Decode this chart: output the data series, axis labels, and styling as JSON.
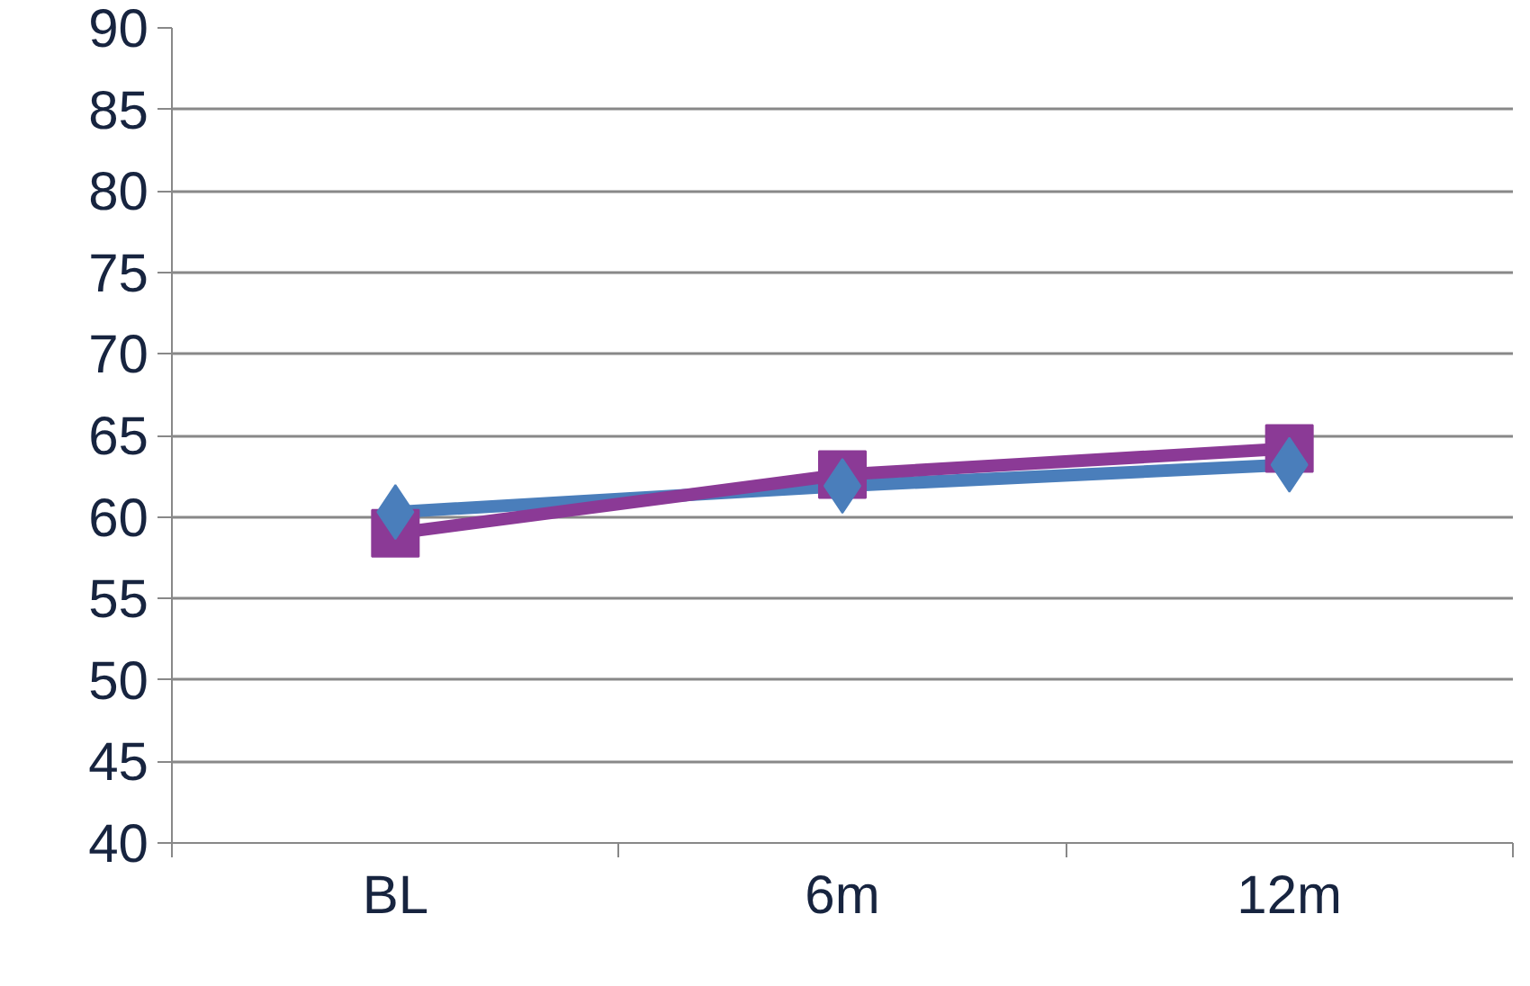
{
  "chart_data": {
    "type": "line",
    "categories": [
      "BL",
      "6m",
      "12m"
    ],
    "series": [
      {
        "color": "#4a7ebb",
        "values": [
          60.3,
          61.9,
          63.2
        ],
        "marker": "diamond"
      },
      {
        "color": "#8b3a96",
        "values": [
          59.0,
          62.6,
          64.2
        ],
        "marker": "square"
      }
    ],
    "ylim": [
      40,
      90
    ],
    "yticks": [
      40,
      45,
      50,
      55,
      60,
      65,
      70,
      75,
      80,
      85,
      90
    ],
    "grid": "y",
    "line_style": "solid"
  }
}
